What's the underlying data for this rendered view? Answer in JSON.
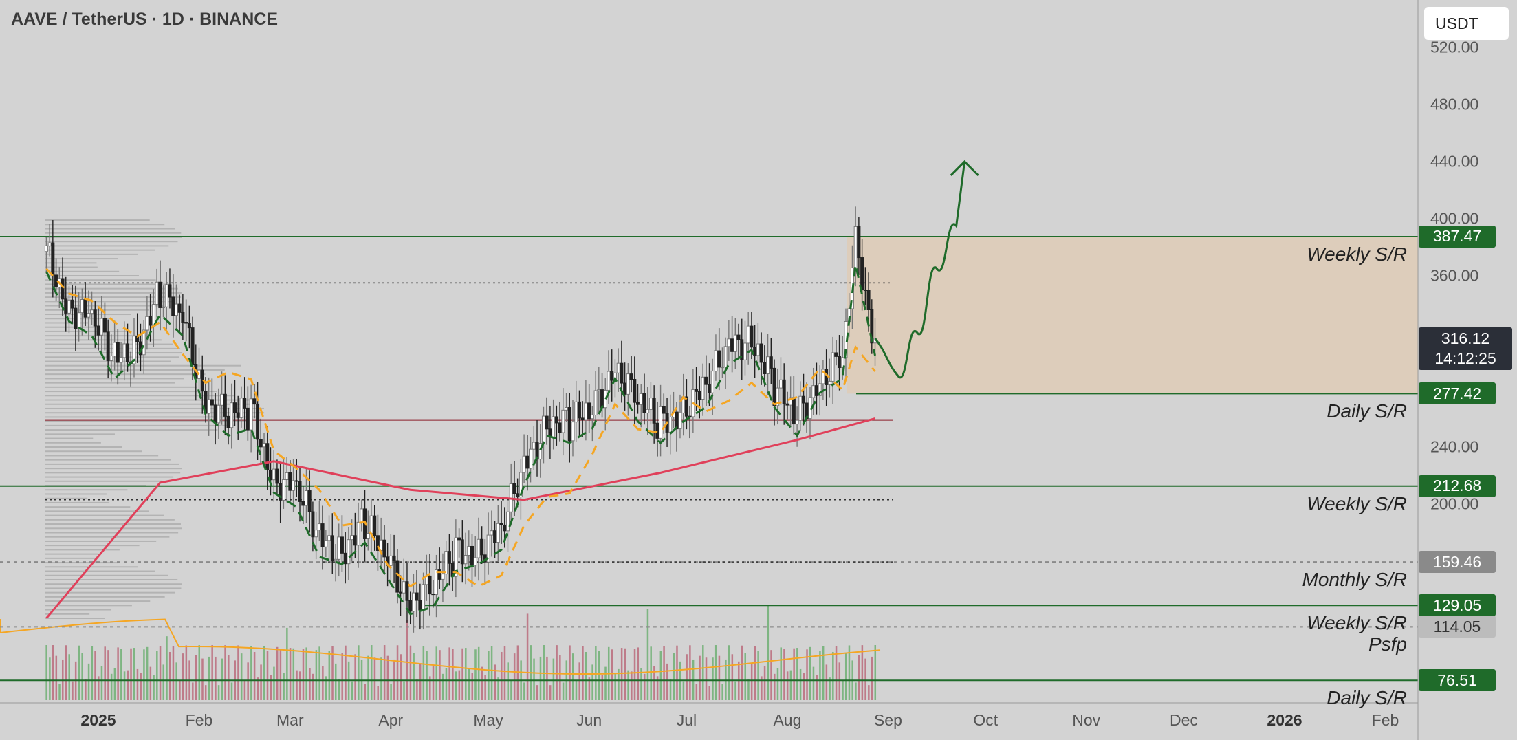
{
  "header": {
    "symbol_title": "AAVE / TetherUS · 1D · BINANCE"
  },
  "toolbar": {
    "currency": "USDT"
  },
  "current_price": {
    "price": "316.12",
    "countdown": "14:12:25"
  },
  "chart_data": {
    "type": "line",
    "symbol": "AAVE / TetherUS",
    "interval": "1D",
    "exchange": "BINANCE",
    "y_ticks": [
      "200.00",
      "240.00",
      "360.00",
      "400.00",
      "440.00",
      "480.00",
      "520.00"
    ],
    "x_ticks": [
      "2025",
      "Feb",
      "Mar",
      "Apr",
      "May",
      "Jun",
      "Jul",
      "Aug",
      "Sep",
      "Oct",
      "Nov",
      "Dec",
      "2026",
      "Feb"
    ],
    "levels": [
      {
        "price": 387.47,
        "tag": "387.47",
        "label": "Weekly S/R",
        "tag_style": "green"
      },
      {
        "price": 277.42,
        "tag": "277.42",
        "label": "Daily S/R",
        "tag_style": "green"
      },
      {
        "price": 212.68,
        "tag": "212.68",
        "label": "Weekly S/R",
        "tag_style": "green"
      },
      {
        "price": 159.46,
        "tag": "159.46",
        "label": "Monthly S/R",
        "tag_style": "gray"
      },
      {
        "price": 129.05,
        "tag": "129.05",
        "label": "Weekly S/R",
        "tag_style": "green"
      },
      {
        "price": 114.05,
        "tag": "114.05",
        "label": "Psfp",
        "tag_style": "lightgray"
      },
      {
        "price": 76.51,
        "tag": "76.51",
        "label": "Daily S/R",
        "tag_style": "green"
      }
    ],
    "candles_approx": [
      {
        "date": "2024-12-16",
        "close": 375
      },
      {
        "date": "2024-12-23",
        "close": 340
      },
      {
        "date": "2024-12-30",
        "close": 330
      },
      {
        "date": "2025-01-06",
        "close": 300
      },
      {
        "date": "2025-01-13",
        "close": 315
      },
      {
        "date": "2025-01-20",
        "close": 345
      },
      {
        "date": "2025-01-27",
        "close": 330
      },
      {
        "date": "2025-02-03",
        "close": 275
      },
      {
        "date": "2025-02-10",
        "close": 260
      },
      {
        "date": "2025-02-17",
        "close": 265
      },
      {
        "date": "2025-02-24",
        "close": 220
      },
      {
        "date": "2025-03-03",
        "close": 210
      },
      {
        "date": "2025-03-10",
        "close": 175
      },
      {
        "date": "2025-03-17",
        "close": 170
      },
      {
        "date": "2025-03-24",
        "close": 185
      },
      {
        "date": "2025-03-31",
        "close": 160
      },
      {
        "date": "2025-04-07",
        "close": 135
      },
      {
        "date": "2025-04-14",
        "close": 140
      },
      {
        "date": "2025-04-21",
        "close": 165
      },
      {
        "date": "2025-04-28",
        "close": 170
      },
      {
        "date": "2025-05-05",
        "close": 180
      },
      {
        "date": "2025-05-12",
        "close": 225
      },
      {
        "date": "2025-05-19",
        "close": 260
      },
      {
        "date": "2025-05-26",
        "close": 255
      },
      {
        "date": "2025-06-02",
        "close": 265
      },
      {
        "date": "2025-06-09",
        "close": 300
      },
      {
        "date": "2025-06-16",
        "close": 270
      },
      {
        "date": "2025-06-23",
        "close": 255
      },
      {
        "date": "2025-06-30",
        "close": 270
      },
      {
        "date": "2025-07-07",
        "close": 280
      },
      {
        "date": "2025-07-14",
        "close": 310
      },
      {
        "date": "2025-07-21",
        "close": 320
      },
      {
        "date": "2025-07-28",
        "close": 280
      },
      {
        "date": "2025-08-04",
        "close": 260
      },
      {
        "date": "2025-08-11",
        "close": 290
      },
      {
        "date": "2025-08-18",
        "close": 300
      },
      {
        "date": "2025-08-22",
        "close": 380
      },
      {
        "date": "2025-08-28",
        "close": 316.12
      }
    ],
    "moving_average_200": [
      {
        "date": "2024-12-16",
        "value": 120
      },
      {
        "date": "2025-01-20",
        "value": 215
      },
      {
        "date": "2025-02-24",
        "value": 230
      },
      {
        "date": "2025-04-07",
        "value": 210
      },
      {
        "date": "2025-05-12",
        "value": 203
      },
      {
        "date": "2025-06-23",
        "value": 222
      },
      {
        "date": "2025-08-04",
        "value": 245
      },
      {
        "date": "2025-08-28",
        "value": 260
      }
    ],
    "projection": [
      {
        "date": "2025-08-28",
        "value": 316
      },
      {
        "date": "2025-09-04",
        "value": 290
      },
      {
        "date": "2025-09-10",
        "value": 320
      },
      {
        "date": "2025-09-16",
        "value": 365
      },
      {
        "date": "2025-09-22",
        "value": 395
      }
    ]
  },
  "colors": {
    "background": "#d3d3d3",
    "level_green": "#1f6b2a",
    "ma200": "#e0405a",
    "ma_fast_dashed": "#1f6b2a",
    "ma_slow_dashed": "#f5a623",
    "zone_fill": "#e6c9a8",
    "projection": "#1f6b2a"
  },
  "icons": {
    "projection_arrow": "arrow-up-icon"
  }
}
